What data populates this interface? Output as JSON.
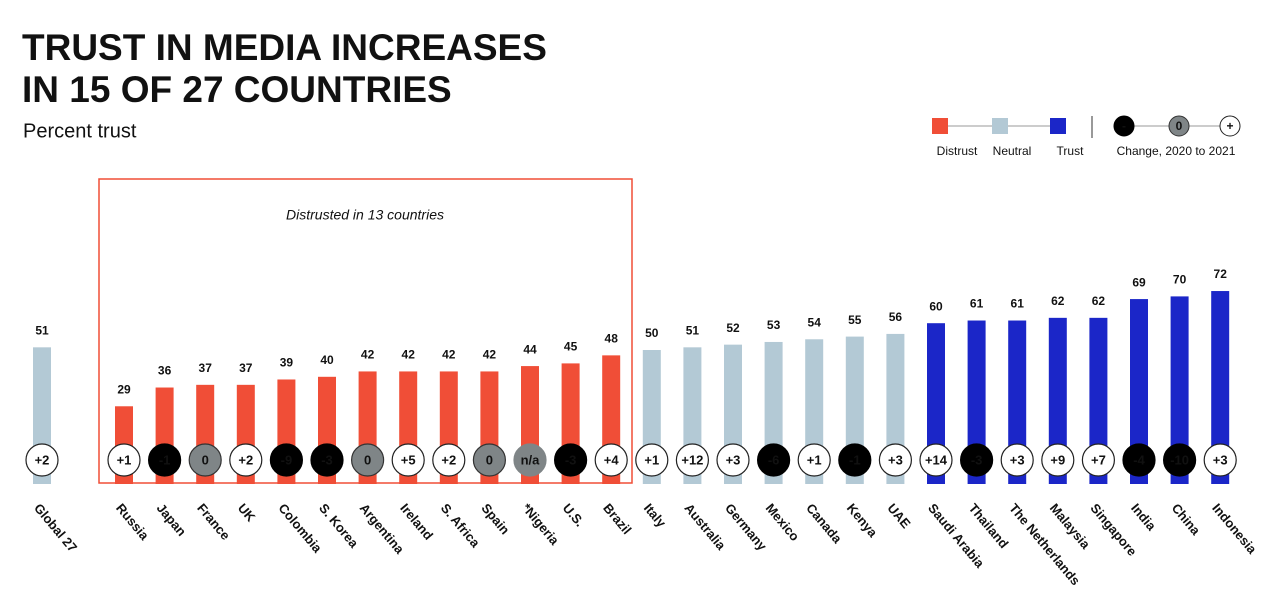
{
  "chart_data": {
    "type": "bar",
    "title_lines": [
      "TRUST IN MEDIA INCREASES",
      "IN 15 OF 27 COUNTRIES"
    ],
    "subtitle": "Percent trust",
    "annotation": "Distrusted in 13 countries",
    "categories": [
      "Global 27",
      "Russia",
      "Japan",
      "France",
      "UK",
      "Colombia",
      "S. Korea",
      "Argentina",
      "Ireland",
      "S. Africa",
      "Spain",
      "*Nigeria",
      "U.S.",
      "Brazil",
      "Italy",
      "Australia",
      "Germany",
      "Mexico",
      "Canada",
      "Kenya",
      "UAE",
      "Saudi Arabia",
      "Thailand",
      "The Netherlands",
      "Malaysia",
      "Singapore",
      "India",
      "China",
      "Indonesia"
    ],
    "series": [
      {
        "name": "Distrust",
        "color": "#f04e37",
        "values": [
          null,
          29,
          36,
          37,
          37,
          39,
          40,
          42,
          42,
          42,
          42,
          44,
          45,
          48,
          null,
          null,
          null,
          null,
          null,
          null,
          null,
          null,
          null,
          null,
          null,
          null,
          null,
          null,
          null
        ]
      },
      {
        "name": "Neutral",
        "color": "#b3c9d5",
        "values": [
          51,
          null,
          null,
          null,
          null,
          null,
          null,
          null,
          null,
          null,
          null,
          null,
          null,
          null,
          50,
          51,
          52,
          53,
          54,
          55,
          56,
          null,
          null,
          null,
          null,
          null,
          null,
          null,
          null
        ]
      },
      {
        "name": "Trust",
        "color": "#1b26c8",
        "values": [
          null,
          null,
          null,
          null,
          null,
          null,
          null,
          null,
          null,
          null,
          null,
          null,
          null,
          null,
          null,
          null,
          null,
          null,
          null,
          null,
          null,
          60,
          61,
          61,
          62,
          62,
          69,
          70,
          72
        ]
      }
    ],
    "changes": [
      2,
      1,
      -1,
      0,
      2,
      -9,
      -3,
      0,
      5,
      2,
      0,
      null,
      -3,
      4,
      1,
      12,
      3,
      -6,
      1,
      -1,
      3,
      14,
      -3,
      3,
      9,
      7,
      -4,
      -10,
      3
    ],
    "change_labels": [
      "+2",
      "+1",
      "-1",
      "0",
      "+2",
      "-9",
      "-3",
      "0",
      "+5",
      "+2",
      "0",
      "n/a",
      "-3",
      "+4",
      "+1",
      "+12",
      "+3",
      "-6",
      "+1",
      "-1",
      "+3",
      "+14",
      "-3",
      "+3",
      "+9",
      "+7",
      "-4",
      "-10",
      "+3"
    ],
    "change_legend": {
      "title": "Change, 2020 to 2021",
      "symbols": [
        "-",
        "0",
        "+"
      ]
    }
  }
}
